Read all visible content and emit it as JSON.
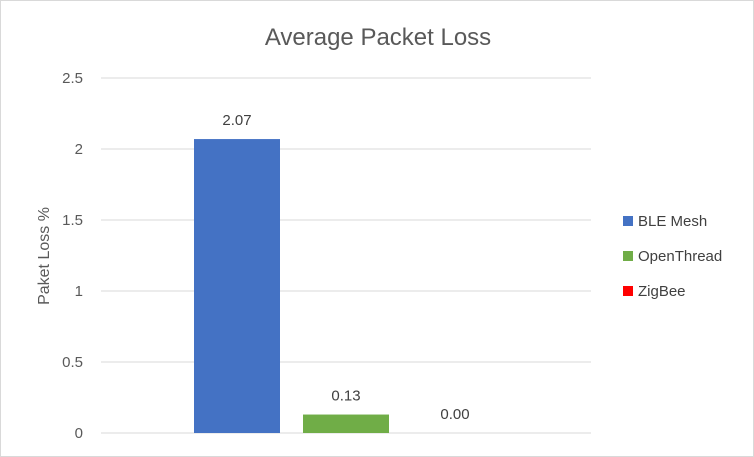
{
  "chart_data": {
    "type": "bar",
    "title": "Average Packet Loss",
    "xlabel": "",
    "ylabel": "Paket Loss %",
    "ylim": [
      0,
      2.5
    ],
    "yticks": [
      0,
      0.5,
      1,
      1.5,
      2,
      2.5
    ],
    "ytick_labels": [
      "0",
      "0.5",
      "1",
      "1.5",
      "2",
      "2.5"
    ],
    "grid": true,
    "legend_position": "right",
    "series": [
      {
        "name": "BLE Mesh",
        "value": 2.07,
        "label": "2.07",
        "color": "#4472C4"
      },
      {
        "name": "OpenThread",
        "value": 0.13,
        "label": "0.13",
        "color": "#70AD47"
      },
      {
        "name": "ZigBee",
        "value": 0.0,
        "label": "0.00",
        "color": "#FF0000"
      }
    ]
  }
}
